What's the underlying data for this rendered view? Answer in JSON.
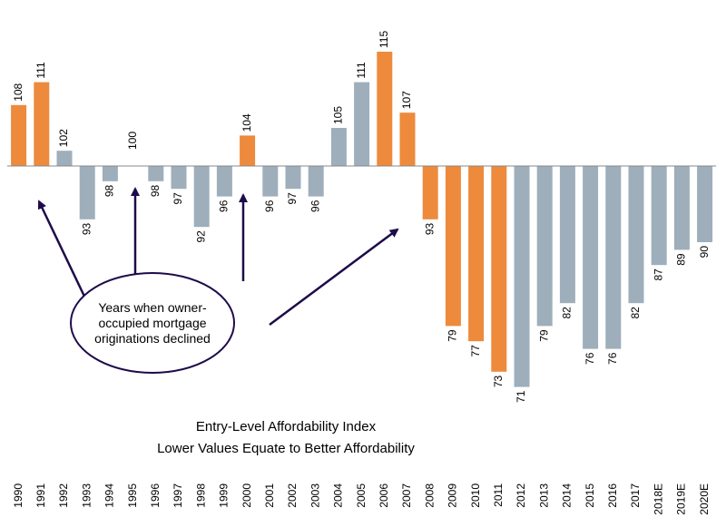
{
  "chart_data": {
    "type": "bar",
    "title": "Entry-Level Affordability Index",
    "subtitle": "Lower Values Equate to Better Affordability",
    "baseline": 100,
    "categories": [
      "1990",
      "1991",
      "1992",
      "1993",
      "1994",
      "1995",
      "1996",
      "1997",
      "1998",
      "1999",
      "2000",
      "2001",
      "2002",
      "2003",
      "2004",
      "2005",
      "2006",
      "2007",
      "2008",
      "2009",
      "2010",
      "2011",
      "2012",
      "2013",
      "2014",
      "2015",
      "2016",
      "2017",
      "2018E",
      "2019E",
      "2020E"
    ],
    "values": [
      108,
      111,
      102,
      93,
      98,
      100,
      98,
      97,
      92,
      96,
      104,
      96,
      97,
      96,
      105,
      111,
      115,
      107,
      93,
      79,
      77,
      73,
      71,
      79,
      82,
      76,
      76,
      82,
      87,
      89,
      90
    ],
    "highlighted": [
      true,
      true,
      false,
      false,
      false,
      false,
      false,
      false,
      false,
      false,
      true,
      false,
      false,
      false,
      false,
      false,
      true,
      true,
      true,
      true,
      true,
      true,
      false,
      false,
      false,
      false,
      false,
      false,
      false,
      false,
      false
    ],
    "highlight_color": "#ED8A3C",
    "base_color": "#9EAEBB",
    "annotation": "Years when owner-occupied mortgage originations declined",
    "annotation_lines": [
      "Years when owner-",
      "occupied mortgage",
      "originations declined"
    ],
    "xlabel": "",
    "ylabel": ""
  }
}
